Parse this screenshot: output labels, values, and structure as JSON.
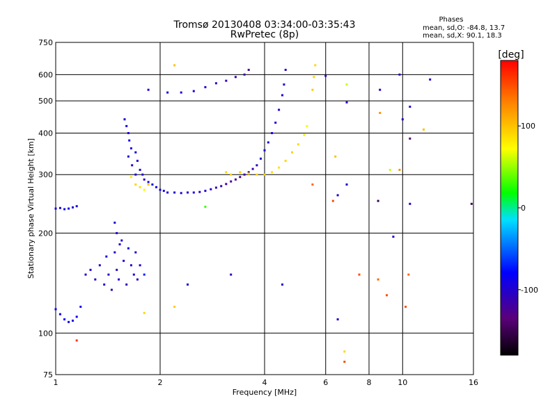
{
  "chart_data": {
    "type": "scatter",
    "title": "Tromsø 20130408 03:34:00-03:35:43",
    "subtitle": "RwPretec (8p)",
    "xlabel": "Frequency [MHz]",
    "ylabel": "Stationary phase Virtual Height [km]",
    "x_scale": "log",
    "y_scale": "log",
    "xlim": [
      1,
      16
    ],
    "ylim": [
      75,
      750
    ],
    "x_ticks": [
      1,
      2,
      4,
      6,
      8,
      10,
      16
    ],
    "y_ticks": [
      75,
      100,
      200,
      300,
      400,
      500,
      600,
      750
    ],
    "grid": true,
    "stats": {
      "heading": "Phases",
      "o_line": "mean, sd,O: -84.8, 13.7",
      "x_line": "mean, sd,X:  90.1, 18.3"
    },
    "colorbar": {
      "label": "[deg]",
      "ticks": [
        100,
        0,
        -100
      ],
      "range": [
        -180,
        180
      ]
    },
    "series": [
      {
        "points": [
          [
            1.0,
            237,
            -95
          ],
          [
            1.03,
            238,
            -90
          ],
          [
            1.06,
            236,
            -92
          ],
          [
            1.09,
            237,
            -88
          ],
          [
            1.12,
            239,
            -94
          ],
          [
            1.15,
            241,
            -90
          ],
          [
            1.0,
            118,
            -85
          ],
          [
            1.03,
            114,
            -88
          ],
          [
            1.06,
            110,
            -82
          ],
          [
            1.09,
            108,
            -86
          ],
          [
            1.12,
            109,
            -90
          ],
          [
            1.15,
            112,
            -84
          ],
          [
            1.18,
            120,
            -88
          ],
          [
            1.22,
            150,
            -100
          ],
          [
            1.26,
            155,
            -95
          ],
          [
            1.3,
            145,
            -105
          ],
          [
            1.34,
            160,
            -98
          ],
          [
            1.38,
            140,
            -102
          ],
          [
            1.4,
            170,
            -95
          ],
          [
            1.42,
            150,
            -100
          ],
          [
            1.45,
            135,
            -108
          ],
          [
            1.48,
            175,
            -96
          ],
          [
            1.5,
            155,
            -104
          ],
          [
            1.52,
            145,
            -92
          ],
          [
            1.55,
            190,
            -100
          ],
          [
            1.57,
            165,
            -98
          ],
          [
            1.6,
            140,
            -110
          ],
          [
            1.62,
            180,
            -94
          ],
          [
            1.65,
            160,
            -102
          ],
          [
            1.68,
            150,
            -99
          ],
          [
            1.7,
            175,
            -97
          ],
          [
            1.72,
            145,
            -101
          ],
          [
            1.75,
            160,
            -95
          ],
          [
            1.8,
            150,
            -70
          ],
          [
            1.48,
            215,
            -98
          ],
          [
            1.5,
            200,
            -95
          ],
          [
            1.53,
            185,
            -100
          ],
          [
            1.58,
            440,
            -90
          ],
          [
            1.6,
            420,
            -92
          ],
          [
            1.62,
            400,
            -95
          ],
          [
            1.63,
            380,
            -88
          ],
          [
            1.65,
            360,
            -94
          ],
          [
            1.62,
            340,
            -98
          ],
          [
            1.66,
            320,
            -96
          ],
          [
            1.7,
            350,
            -90
          ],
          [
            1.72,
            330,
            -99
          ],
          [
            1.75,
            310,
            -95
          ],
          [
            1.78,
            300,
            -102
          ],
          [
            1.7,
            300,
            -88
          ],
          [
            1.8,
            290,
            -100
          ],
          [
            1.85,
            285,
            -96
          ],
          [
            1.9,
            280,
            -98
          ],
          [
            1.95,
            275,
            -94
          ],
          [
            2.0,
            270,
            -92
          ],
          [
            2.05,
            268,
            -96
          ],
          [
            2.1,
            265,
            -95
          ],
          [
            2.2,
            265,
            -98
          ],
          [
            2.3,
            264,
            -97
          ],
          [
            2.4,
            265,
            -96
          ],
          [
            2.5,
            265,
            -99
          ],
          [
            2.6,
            266,
            -98
          ],
          [
            2.7,
            268,
            -100
          ],
          [
            2.8,
            271,
            -105
          ],
          [
            2.9,
            274,
            -108
          ],
          [
            3.0,
            277,
            -112
          ],
          [
            3.1,
            281,
            -118
          ],
          [
            3.2,
            286,
            -122
          ],
          [
            3.3,
            290,
            -125
          ],
          [
            3.4,
            295,
            -126
          ],
          [
            3.5,
            300,
            -120
          ],
          [
            3.6,
            305,
            -115
          ],
          [
            3.7,
            312,
            -110
          ],
          [
            3.8,
            320,
            -105
          ],
          [
            3.9,
            335,
            -100
          ],
          [
            4.0,
            355,
            -98
          ],
          [
            4.1,
            375,
            -95
          ],
          [
            4.2,
            400,
            -94
          ],
          [
            4.3,
            430,
            -96
          ],
          [
            4.4,
            470,
            -95
          ],
          [
            4.5,
            520,
            -98
          ],
          [
            4.55,
            560,
            -100
          ],
          [
            4.6,
            620,
            -97
          ],
          [
            1.65,
            295,
            80
          ],
          [
            1.7,
            280,
            90
          ],
          [
            1.75,
            275,
            85
          ],
          [
            1.8,
            270,
            75
          ],
          [
            1.85,
            280,
            95
          ],
          [
            3.1,
            305,
            90
          ],
          [
            3.2,
            300,
            92
          ],
          [
            3.4,
            305,
            95
          ],
          [
            3.6,
            302,
            88
          ],
          [
            3.8,
            300,
            90
          ],
          [
            4.0,
            300,
            92
          ],
          [
            4.2,
            305,
            88
          ],
          [
            4.4,
            315,
            85
          ],
          [
            4.6,
            330,
            90
          ],
          [
            4.8,
            350,
            92
          ],
          [
            5.0,
            370,
            88
          ],
          [
            5.2,
            395,
            80
          ],
          [
            5.3,
            420,
            70
          ],
          [
            5.5,
            540,
            95
          ],
          [
            5.55,
            590,
            92
          ],
          [
            5.6,
            640,
            90
          ],
          [
            2.1,
            530,
            -95
          ],
          [
            2.3,
            530,
            -98
          ],
          [
            2.5,
            535,
            -96
          ],
          [
            2.7,
            550,
            -100
          ],
          [
            2.9,
            565,
            -105
          ],
          [
            3.1,
            575,
            -110
          ],
          [
            3.3,
            590,
            -115
          ],
          [
            3.5,
            600,
            -118
          ],
          [
            3.6,
            620,
            -125
          ],
          [
            1.85,
            540,
            -95
          ],
          [
            2.2,
            640,
            100
          ],
          [
            2.7,
            240,
            30
          ],
          [
            2.4,
            140,
            -100
          ],
          [
            3.2,
            150,
            -110
          ],
          [
            4.5,
            140,
            -100
          ],
          [
            2.2,
            120,
            95
          ],
          [
            1.8,
            115,
            90
          ],
          [
            1.15,
            95,
            160
          ],
          [
            6.5,
            110,
            -100
          ],
          [
            6.8,
            82,
            150
          ],
          [
            6.8,
            88,
            90
          ],
          [
            7.5,
            150,
            150
          ],
          [
            8.5,
            145,
            140
          ],
          [
            9.0,
            130,
            150
          ],
          [
            10.2,
            120,
            150
          ],
          [
            10.4,
            150,
            140
          ],
          [
            6.0,
            595,
            -100
          ],
          [
            6.9,
            560,
            60
          ],
          [
            6.9,
            495,
            -100
          ],
          [
            8.6,
            540,
            -100
          ],
          [
            8.6,
            460,
            120
          ],
          [
            9.8,
            600,
            -100
          ],
          [
            10.5,
            480,
            -100
          ],
          [
            10.0,
            440,
            -100
          ],
          [
            11.5,
            410,
            100
          ],
          [
            10.5,
            385,
            -140
          ],
          [
            8.5,
            250,
            -150
          ],
          [
            10.5,
            245,
            -100
          ],
          [
            15.8,
            245,
            -150
          ],
          [
            12.0,
            580,
            -100
          ],
          [
            6.3,
            250,
            150
          ],
          [
            6.5,
            260,
            -100
          ],
          [
            6.4,
            340,
            100
          ],
          [
            5.5,
            280,
            140
          ],
          [
            9.4,
            195,
            -100
          ],
          [
            9.8,
            310,
            120
          ],
          [
            9.2,
            310,
            60
          ],
          [
            6.9,
            280,
            -100
          ]
        ]
      }
    ]
  }
}
